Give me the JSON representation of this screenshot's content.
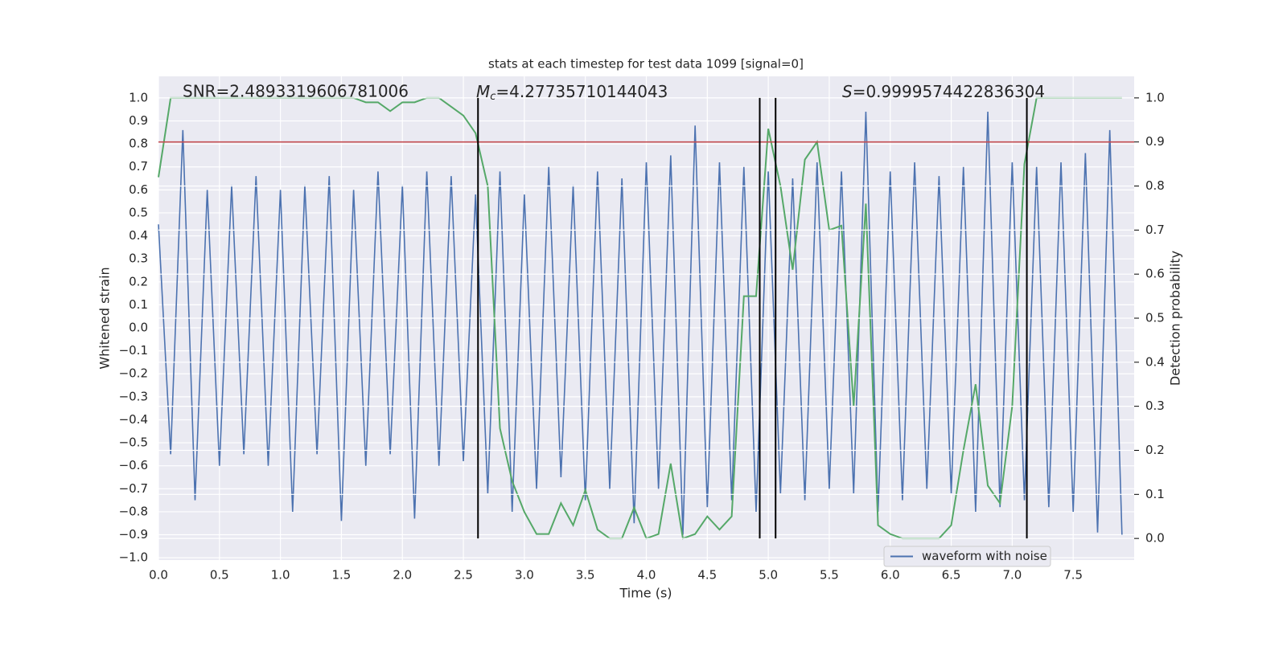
{
  "chart_data": {
    "type": "line",
    "title": "stats at each timestep for test data 1099 [signal=0]",
    "x_label": "Time (s)",
    "y_label": "Whitened strain",
    "y2_label": "Detection probability",
    "xlim": [
      0,
      8.0
    ],
    "ylim": [
      -1.01,
      1.094
    ],
    "y2lim": [
      -0.049,
      1.049
    ],
    "xticks": [
      {
        "value": 0,
        "label": "0.0"
      },
      0.5,
      {
        "value": 1,
        "label": "1.0"
      },
      1.5,
      {
        "value": 2,
        "label": "2.0"
      },
      2.5,
      {
        "value": 3,
        "label": "3.0"
      },
      3.5,
      {
        "value": 4,
        "label": "4.0"
      },
      4.5,
      {
        "value": 5,
        "label": "5.0"
      },
      5.5,
      {
        "value": 6,
        "label": "6.0"
      },
      6.5,
      {
        "value": 7,
        "label": "7.0"
      },
      7.5
    ],
    "yticks": [
      {
        "value": -1,
        "label": "−1.0"
      },
      {
        "value": -0.9,
        "label": "−0.9"
      },
      {
        "value": -0.8,
        "label": "−0.8"
      },
      {
        "value": -0.7,
        "label": "−0.7"
      },
      {
        "value": -0.6,
        "label": "−0.6"
      },
      {
        "value": -0.5,
        "label": "−0.5"
      },
      {
        "value": -0.4,
        "label": "−0.4"
      },
      {
        "value": -0.3,
        "label": "−0.3"
      },
      {
        "value": -0.2,
        "label": "−0.2"
      },
      {
        "value": -0.1,
        "label": "−0.1"
      },
      {
        "value": 0,
        "label": "0.0"
      },
      0.1,
      0.2,
      0.3,
      0.4,
      0.5,
      0.6,
      0.7,
      0.8,
      0.9,
      {
        "value": 1,
        "label": "1.0"
      }
    ],
    "y2ticks": [
      {
        "value": 0,
        "label": "0.0"
      },
      0.1,
      0.2,
      0.3,
      0.4,
      0.5,
      0.6,
      0.7,
      0.8,
      0.9,
      {
        "value": 1,
        "label": "1.0"
      }
    ],
    "grid": true,
    "legend": "lower right",
    "x": [
      0.0,
      0.1,
      0.2,
      0.3,
      0.4,
      0.5,
      0.6,
      0.7,
      0.8,
      0.9,
      1.0,
      1.1,
      1.2,
      1.3,
      1.4,
      1.5,
      1.6,
      1.7,
      1.8,
      1.9,
      2.0,
      2.1,
      2.2,
      2.3,
      2.4,
      2.5,
      2.6,
      2.7,
      2.8,
      2.9,
      3.0,
      3.1,
      3.2,
      3.3,
      3.4,
      3.5,
      3.6,
      3.7,
      3.8,
      3.9,
      4.0,
      4.1,
      4.2,
      4.3,
      4.4,
      4.5,
      4.6,
      4.7,
      4.8,
      4.9,
      5.0,
      5.1,
      5.2,
      5.3,
      5.4,
      5.5,
      5.6,
      5.7,
      5.8,
      5.9,
      6.0,
      6.1,
      6.2,
      6.3,
      6.4,
      6.5,
      6.6,
      6.7,
      6.8,
      6.9,
      7.0,
      7.1,
      7.2,
      7.3,
      7.4,
      7.5,
      7.6,
      7.7,
      7.8,
      7.9
    ],
    "series": [
      {
        "name": "waveform with noise",
        "color": "#4c72b0",
        "values": [
          0.45,
          -0.55,
          0.86,
          -0.75,
          0.6,
          -0.6,
          0.62,
          -0.55,
          0.66,
          -0.6,
          0.6,
          -0.8,
          0.62,
          -0.55,
          0.66,
          -0.84,
          0.6,
          -0.6,
          0.68,
          -0.55,
          0.62,
          -0.83,
          0.68,
          -0.6,
          0.66,
          -0.58,
          0.58,
          -0.72,
          0.68,
          -0.8,
          0.58,
          -0.7,
          0.7,
          -0.65,
          0.62,
          -0.75,
          0.68,
          -0.7,
          0.65,
          -0.85,
          0.72,
          -0.7,
          0.75,
          -0.9,
          0.88,
          -0.78,
          0.72,
          -0.75,
          0.7,
          -0.8,
          0.68,
          -0.72,
          0.65,
          -0.75,
          0.72,
          -0.7,
          0.68,
          -0.72,
          0.94,
          -0.8,
          0.68,
          -0.75,
          0.72,
          -0.7,
          0.66,
          -0.72,
          0.7,
          -0.8,
          0.94,
          -0.78,
          0.72,
          -0.75,
          0.7,
          -0.78,
          0.72,
          -0.8,
          0.76,
          -0.89,
          0.86,
          -0.9
        ]
      },
      {
        "color": "#55a868",
        "axis": "y2",
        "values": [
          0.82,
          1.0,
          1.0,
          1.0,
          1.0,
          1.0,
          1.0,
          1.0,
          1.0,
          1.0,
          1.0,
          1.0,
          1.0,
          1.0,
          1.0,
          1.0,
          1.0,
          0.99,
          0.99,
          0.97,
          0.99,
          0.99,
          1.0,
          1.0,
          0.98,
          0.96,
          0.92,
          0.8,
          0.25,
          0.13,
          0.06,
          0.01,
          0.01,
          0.08,
          0.03,
          0.11,
          0.02,
          0.0,
          0.0,
          0.07,
          0.0,
          0.01,
          0.17,
          0.0,
          0.01,
          0.05,
          0.02,
          0.05,
          0.55,
          0.55,
          0.93,
          0.8,
          0.61,
          0.86,
          0.9,
          0.7,
          0.71,
          0.3,
          0.76,
          0.03,
          0.01,
          0.0,
          0.0,
          0.0,
          0.0,
          0.03,
          0.2,
          0.35,
          0.12,
          0.08,
          0.3,
          0.85,
          1.0,
          1.0,
          1.0,
          1.0,
          1.0,
          1.0,
          1.0,
          1.0
        ]
      }
    ],
    "threshold": {
      "value": 0.9,
      "axis": "y2",
      "color": "#c44e52"
    },
    "vlines": {
      "values": [
        2.62,
        4.93,
        5.06,
        7.12
      ],
      "color": "#000000"
    },
    "annotations": [
      {
        "text": "SNR=2.4893319606781006"
      },
      {
        "symbol": "M",
        "sub": "c",
        "text": "=4.27735710144043"
      },
      {
        "symbol": "S",
        "text": "=0.9999574422836304"
      }
    ]
  }
}
